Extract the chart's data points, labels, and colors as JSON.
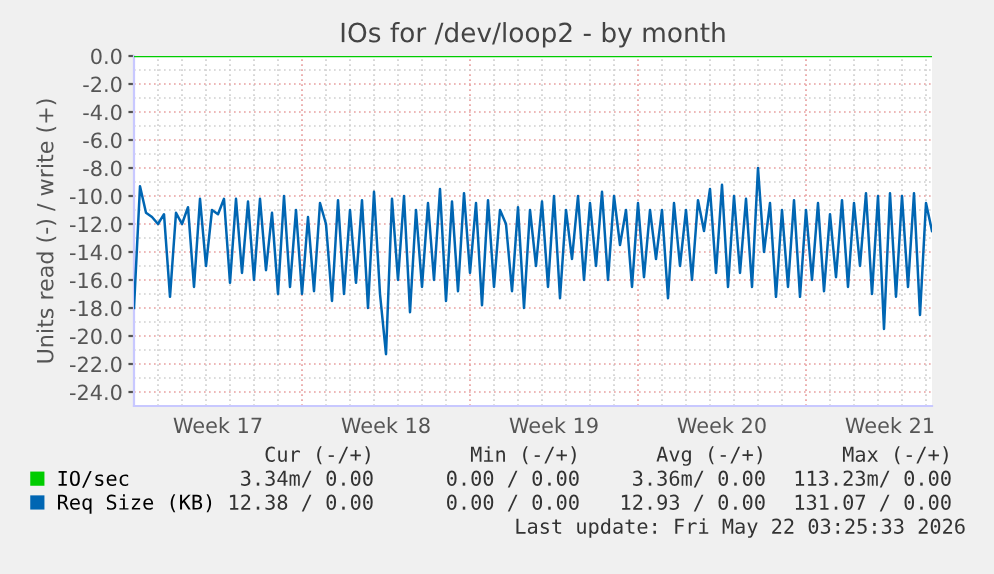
{
  "chart_data": {
    "type": "line",
    "title": "IOs for /dev/loop2 - by month",
    "ylabel": "Units read (-) / write (+)",
    "categories": [
      null,
      null,
      null,
      null,
      null,
      null,
      null,
      null,
      null,
      null,
      null,
      null,
      null,
      null,
      "Week 17",
      null,
      null,
      null,
      null,
      null,
      null,
      null,
      null,
      null,
      null,
      null,
      null,
      null,
      null,
      null,
      null,
      null,
      null,
      null,
      null,
      null,
      null,
      null,
      null,
      null,
      null,
      null,
      "Week 18",
      null,
      null,
      null,
      null,
      null,
      null,
      null,
      null,
      null,
      null,
      null,
      null,
      null,
      null,
      null,
      null,
      null,
      null,
      null,
      null,
      null,
      null,
      null,
      null,
      null,
      null,
      null,
      "Week 19",
      null,
      null,
      null,
      null,
      null,
      null,
      null,
      null,
      null,
      null,
      null,
      null,
      null,
      null,
      null,
      null,
      null,
      null,
      null,
      null,
      null,
      null,
      null,
      null,
      null,
      null,
      null,
      "Week 20",
      null,
      null,
      null,
      null,
      null,
      null,
      null,
      null,
      null,
      null,
      null,
      null,
      null,
      null,
      null,
      null,
      null,
      null,
      null,
      null,
      null,
      null,
      null,
      null,
      null,
      null,
      null,
      "Week 21",
      null,
      null,
      null,
      null,
      null,
      null,
      null
    ],
    "series": [
      {
        "name": "IO/sec",
        "color": "#00cc00",
        "values": [
          0,
          0,
          0,
          0,
          0,
          0,
          0,
          0,
          0,
          0,
          0,
          0,
          0,
          0,
          0,
          0,
          0,
          0,
          0,
          0,
          0,
          0,
          0,
          0,
          0,
          0,
          0,
          0,
          0,
          0,
          0,
          0,
          0,
          0,
          0,
          0,
          0,
          0,
          0,
          0,
          0,
          0,
          0,
          0,
          0,
          0,
          0,
          0,
          0,
          0,
          0,
          0,
          0,
          0,
          0,
          0,
          0,
          0,
          0,
          0,
          0,
          0,
          0,
          0,
          0,
          0,
          0,
          0,
          0,
          0,
          0,
          0,
          0,
          0,
          0,
          0,
          0,
          0,
          0,
          0,
          0,
          0,
          0,
          0,
          0,
          0,
          0,
          0,
          0,
          0,
          0,
          0,
          0,
          0,
          0,
          0,
          0,
          0,
          0,
          0,
          0,
          0,
          0,
          0,
          0,
          0,
          0,
          0,
          0,
          0,
          0,
          0,
          0,
          0,
          0,
          0,
          0,
          0,
          0,
          0,
          0,
          0,
          0,
          0,
          0,
          0,
          0,
          0,
          0,
          0,
          0,
          0,
          0,
          0
        ]
      },
      {
        "name": "Req Size (KB)",
        "color": "#0066b3",
        "values": [
          -18.0,
          -9.3,
          -11.2,
          -11.5,
          -12.0,
          -11.3,
          -17.2,
          -11.2,
          -12.0,
          -10.8,
          -16.5,
          -10.2,
          -15.0,
          -11.0,
          -11.3,
          -10.2,
          -16.2,
          -10.2,
          -15.5,
          -10.4,
          -16.0,
          -10.2,
          -15.3,
          -11.2,
          -17.0,
          -10.0,
          -16.5,
          -11.0,
          -17.0,
          -11.5,
          -16.8,
          -10.5,
          -12.0,
          -17.5,
          -10.3,
          -17.0,
          -11.0,
          -16.2,
          -10.3,
          -18.0,
          -9.7,
          -17.0,
          -21.3,
          -10.2,
          -16.0,
          -10.0,
          -18.3,
          -11.0,
          -16.5,
          -10.5,
          -16.0,
          -9.5,
          -17.5,
          -10.4,
          -16.8,
          -9.8,
          -15.5,
          -10.5,
          -17.8,
          -10.3,
          -16.5,
          -11.0,
          -12.0,
          -16.8,
          -10.8,
          -18.0,
          -11.0,
          -15.0,
          -10.4,
          -16.5,
          -10.0,
          -17.3,
          -11.0,
          -14.5,
          -10.0,
          -16.0,
          -10.5,
          -15.0,
          -9.7,
          -16.0,
          -10.0,
          -13.5,
          -11.0,
          -16.5,
          -10.5,
          -15.8,
          -11.0,
          -14.5,
          -11.0,
          -17.3,
          -10.5,
          -15.0,
          -11.0,
          -16.0,
          -10.3,
          -12.5,
          -9.5,
          -15.5,
          -9.2,
          -16.5,
          -10.0,
          -15.5,
          -10.2,
          -16.5,
          -8.0,
          -14.0,
          -10.5,
          -17.2,
          -11.0,
          -16.5,
          -10.3,
          -17.2,
          -11.0,
          -16.0,
          -10.5,
          -16.8,
          -11.3,
          -15.8,
          -10.3,
          -16.5,
          -10.5,
          -15.0,
          -9.8,
          -17.0,
          -10.0,
          -19.5,
          -9.8,
          -17.2,
          -10.0,
          -16.5,
          -9.8,
          -18.5,
          -10.5,
          -12.5
        ]
      }
    ],
    "ylim": [
      -25,
      0
    ],
    "yticks": [
      {
        "value": 0,
        "label": "0.0"
      },
      {
        "value": -2,
        "label": "-2.0"
      },
      {
        "value": -4,
        "label": "-4.0"
      },
      {
        "value": -6,
        "label": "-6.0"
      },
      {
        "value": -8,
        "label": "-8.0"
      },
      {
        "value": -10,
        "label": "-10.0"
      },
      {
        "value": -12,
        "label": "-12.0"
      },
      {
        "value": -14,
        "label": "-14.0"
      },
      {
        "value": -16,
        "label": "-16.0"
      },
      {
        "value": -18,
        "label": "-18.0"
      },
      {
        "value": -20,
        "label": "-20.0"
      },
      {
        "value": -22,
        "label": "-22.0"
      },
      {
        "value": -24,
        "label": "-24.0"
      }
    ],
    "grid": true,
    "legend": "bottom left",
    "marker": "none",
    "line_style": "solid",
    "annotations": [
      "Cur (-/+)",
      "Min (-/+)",
      "Avg (-/+)",
      "Max (-/+)",
      "3.34m/ 0.00",
      "0.00 / 0.00",
      "3.36m/ 0.00",
      "113.23m/ 0.00",
      "12.38 / 0.00",
      "0.00 / 0.00",
      "12.93 / 0.00",
      "131.07 / 0.00",
      "Last update: Fri May 22 03:25:33 2026"
    ]
  }
}
